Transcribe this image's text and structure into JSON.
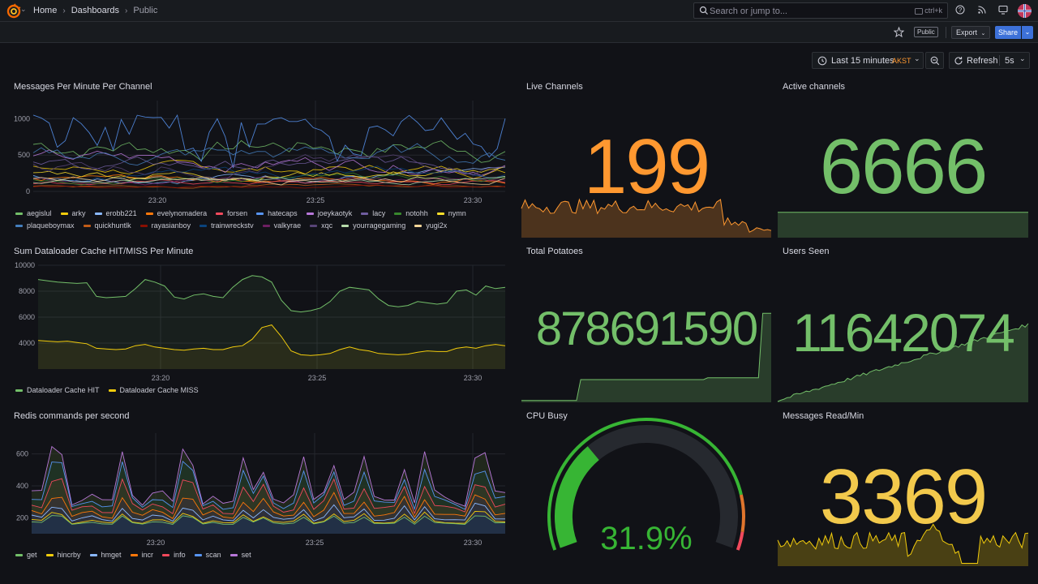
{
  "nav": {
    "crumbs": [
      "Home",
      "Dashboards",
      "Public"
    ],
    "search_placeholder": "Search or jump to...",
    "search_shortcut": "ctrl+k"
  },
  "toolbar": {
    "public_badge": "Public",
    "export_label": "Export",
    "share_label": "Share",
    "time_range": "Last 15 minutes",
    "timezone": "AKST",
    "refresh_label": "Refresh",
    "refresh_interval": "5s"
  },
  "colors": {
    "green": "#73bf69",
    "orange": "#ff9830",
    "yellow": "#f2cc0c",
    "gauge_green": "#37b534",
    "gauge_orange": "#e0752d",
    "gauge_red": "#f2495c"
  },
  "panels": {
    "messages": {
      "title": "Messages Per Minute Per Channel"
    },
    "dataloader": {
      "title": "Sum Dataloader Cache HIT/MISS Per Minute"
    },
    "redis": {
      "title": "Redis commands per second"
    },
    "live_channels": {
      "title": "Live Channels",
      "value": "199"
    },
    "active_channels": {
      "title": "Active channels",
      "value": "6666"
    },
    "total_potatoes": {
      "title": "Total Potatoes",
      "value": "878691590"
    },
    "users_seen": {
      "title": "Users Seen",
      "value": "11642074"
    },
    "cpu_busy": {
      "title": "CPU Busy",
      "value": "31.9%",
      "fraction": 0.319
    },
    "messages_read": {
      "title": "Messages Read/Min",
      "value": "3369"
    }
  },
  "chart_data": [
    {
      "type": "line",
      "title": "Messages Per Minute Per Channel",
      "x_ticks": [
        "23:20",
        "23:25",
        "23:30"
      ],
      "y_ticks": [
        "0",
        "500",
        "1000"
      ],
      "ylim": [
        0,
        1250
      ],
      "legend": [
        "aegislul",
        "arky",
        "erobb221",
        "evelynomadera",
        "forsen",
        "hatecaps",
        "joeykaotyk",
        "lacy",
        "notohh",
        "nymn",
        "plaqueboymax",
        "quickhuntlk",
        "rayasianboy",
        "trainwreckstv",
        "valkyrae",
        "xqc",
        "yourragegaming",
        "yugi2x"
      ],
      "series_colors": [
        "#73bf69",
        "#f2cc0c",
        "#8ab8ff",
        "#ff780a",
        "#f2495c",
        "#5794f2",
        "#b877d9",
        "#705da0",
        "#37872d",
        "#fade2a",
        "#447ebc",
        "#c15c17",
        "#890f02",
        "#0a437c",
        "#6d1f62",
        "#584477",
        "#b7dbab",
        "#f4d598"
      ],
      "grid": true,
      "legend_placement": "bottom"
    },
    {
      "type": "line",
      "title": "Sum Dataloader Cache HIT/MISS Per Minute",
      "x_ticks": [
        "23:20",
        "23:25",
        "23:30"
      ],
      "y_ticks": [
        "4000",
        "6000",
        "8000",
        "10000"
      ],
      "ylim": [
        2000,
        10000
      ],
      "series": [
        {
          "name": "Dataloader Cache HIT",
          "color": "#73bf69",
          "values": [
            8900,
            8800,
            8700,
            8650,
            8600,
            8650,
            7600,
            7500,
            7550,
            7600,
            8200,
            8900,
            8700,
            8400,
            7550,
            7400,
            7700,
            7800,
            7600,
            7500,
            8300,
            8900,
            9200,
            9100,
            8700,
            7300,
            6500,
            6400,
            6500,
            6700,
            7200,
            8000,
            8300,
            8200,
            8100,
            7400,
            6900,
            6800,
            6900,
            7200,
            7100,
            7000,
            7100,
            8000,
            8100,
            7700,
            8400,
            8200,
            8300
          ]
        },
        {
          "name": "Dataloader Cache MISS",
          "color": "#f2cc0c",
          "values": [
            4200,
            4150,
            4100,
            4150,
            4050,
            3950,
            3600,
            3550,
            3500,
            3550,
            3800,
            3900,
            3700,
            3600,
            3500,
            3450,
            3550,
            3600,
            3500,
            3500,
            3700,
            3800,
            4300,
            5200,
            5400,
            4500,
            3400,
            3100,
            3050,
            3100,
            3200,
            3500,
            3700,
            3500,
            3400,
            3200,
            3150,
            3100,
            3150,
            3300,
            3400,
            3350,
            3350,
            3600,
            3700,
            3600,
            3800,
            3900,
            3800
          ]
        }
      ],
      "grid": true,
      "legend_placement": "bottom"
    },
    {
      "type": "area",
      "title": "Redis commands per second",
      "x_ticks": [
        "23:20",
        "23:25",
        "23:30"
      ],
      "y_ticks": [
        "200",
        "400",
        "600"
      ],
      "ylim": [
        100,
        730
      ],
      "legend": [
        "get",
        "hincrby",
        "hmget",
        "incr",
        "info",
        "scan",
        "set"
      ],
      "series_colors": [
        "#73bf69",
        "#f2cc0c",
        "#8ab8ff",
        "#ff780a",
        "#f2495c",
        "#5794f2",
        "#b877d9"
      ],
      "grid": true,
      "legend_placement": "bottom"
    }
  ]
}
